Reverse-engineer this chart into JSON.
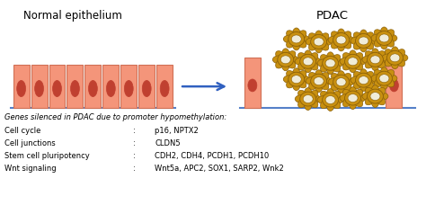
{
  "title_left": "Normal epithelium",
  "title_right": "PDAC",
  "subtitle": "Genes silenced in PDAC due to promoter hypomethylation:",
  "rows": [
    {
      "label": "Cell cycle",
      "colon": ":",
      "genes": "p16, NPTX2"
    },
    {
      "label": "Cell junctions",
      "colon": ":",
      "genes": "CLDN5"
    },
    {
      "label": "Stem cell pluripotency",
      "colon": ":",
      "genes": "CDH2, CDH4, PCDH1, PCDH10"
    },
    {
      "label": "Wnt signaling",
      "colon": ":",
      "genes": "Wnt5a, APC2, SOX1, SARP2, Wnk2"
    }
  ],
  "cell_fill": "#F4957A",
  "cell_edge": "#D07055",
  "nucleus_fill": "#C04030",
  "nucleus_edge": "#C04030",
  "base_color": "#5580C8",
  "arrow_color": "#3060C0",
  "tumor_outer_fill": "#C89010",
  "tumor_outer_edge": "#8B6008",
  "tumor_inner_fill": "#F0ECD8",
  "bg_color": "#FFFFFF",
  "text_color": "#000000"
}
